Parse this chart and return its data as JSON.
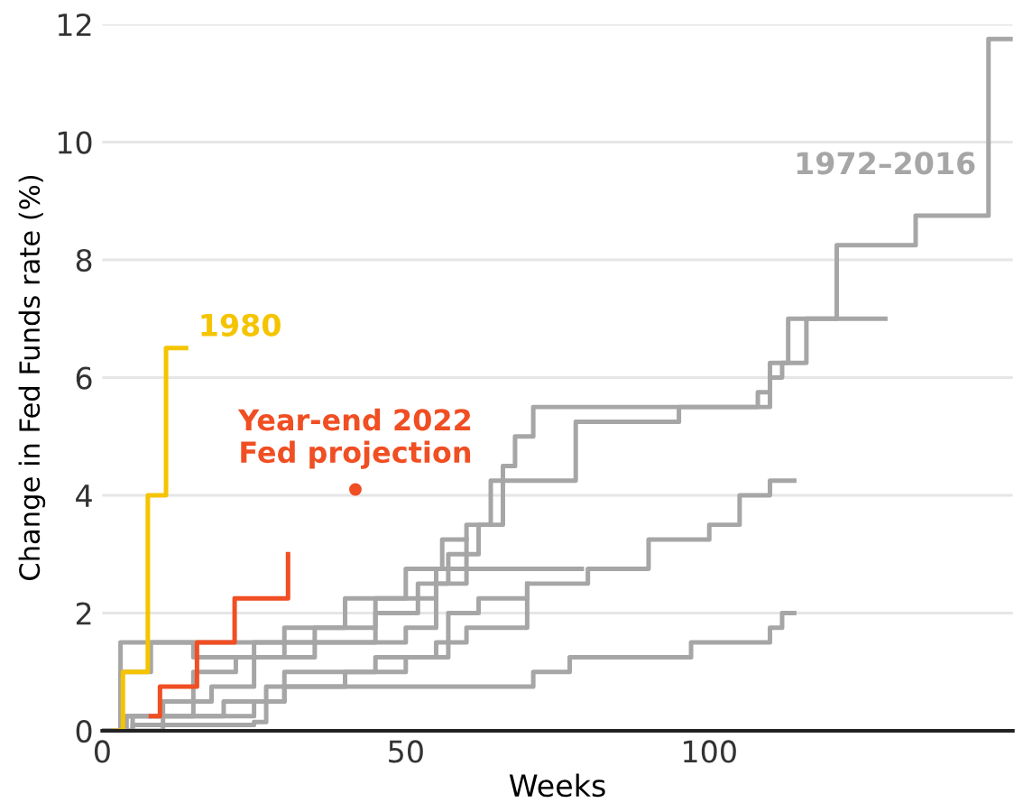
{
  "chart_data": {
    "type": "step",
    "xlabel": "Weeks",
    "ylabel": "Change in Fed Funds rate (%)",
    "xlim": [
      0,
      150
    ],
    "xticks": [
      0,
      50,
      100
    ],
    "ylim": [
      0,
      12
    ],
    "yticks": [
      0,
      2,
      4,
      6,
      8,
      10,
      12
    ],
    "grid": "y",
    "legend": false,
    "marker": "none",
    "line_style": "solid",
    "series": [
      {
        "name": "1972–2016",
        "color": "#a6a6a6",
        "x": [
          0,
          3,
          10,
          18,
          25,
          35,
          45,
          52,
          57,
          62,
          66,
          68,
          71,
          108,
          110,
          113,
          121,
          134,
          146,
          150
        ],
        "values": [
          0,
          0.25,
          0.5,
          0.75,
          1.25,
          1.5,
          2,
          2.5,
          3,
          3.5,
          4.5,
          5,
          5.5,
          5.75,
          6.25,
          7,
          8.25,
          8.75,
          11.75,
          11.75
        ]
      },
      {
        "color": "#a6a6a6",
        "x": [
          0,
          5,
          15,
          22,
          30,
          40,
          50,
          56,
          60,
          64,
          78,
          95,
          107,
          110,
          112,
          116,
          129
        ],
        "values": [
          0,
          0.25,
          1,
          1.25,
          1.75,
          2.25,
          2.75,
          3.25,
          3.5,
          4.25,
          5.25,
          5.5,
          5.5,
          6,
          6.25,
          7,
          7
        ]
      },
      {
        "color": "#a6a6a6",
        "x": [
          0,
          3,
          45,
          50,
          55,
          60,
          70,
          79
        ],
        "values": [
          0,
          1.5,
          1.5,
          1.75,
          2.5,
          2.75,
          2.75,
          2.75
        ]
      },
      {
        "color": "#a6a6a6",
        "x": [
          0,
          10,
          25,
          30,
          45,
          55,
          60,
          70,
          80,
          90,
          100,
          105,
          110,
          114
        ],
        "values": [
          0,
          0.25,
          0.5,
          1,
          1.25,
          1.5,
          1.75,
          2.5,
          2.75,
          3.25,
          3.5,
          4,
          4.25,
          4.25
        ]
      },
      {
        "color": "#a6a6a6",
        "x": [
          0,
          5,
          25,
          27,
          71,
          77,
          97,
          110,
          112,
          114
        ],
        "values": [
          0,
          0.1,
          0.15,
          0.75,
          1,
          1.25,
          1.5,
          1.75,
          2,
          2
        ]
      },
      {
        "color": "#a6a6a6",
        "x": [
          0,
          4,
          20,
          30,
          40,
          50,
          57,
          62,
          70
        ],
        "values": [
          0,
          0.25,
          0.5,
          0.75,
          1,
          1.25,
          2,
          2.25,
          2.5
        ]
      },
      {
        "color": "#a6a6a6",
        "x": [
          0,
          3,
          8,
          15,
          25,
          35,
          45,
          55,
          60
        ],
        "values": [
          0,
          1,
          1.5,
          1.25,
          1.5,
          1.75,
          2.25,
          2.75,
          3.25
        ]
      },
      {
        "name": "1980",
        "color": "#f5c400",
        "x": [
          2,
          3.4,
          7.5,
          10.5,
          13.8
        ],
        "values": [
          0,
          1,
          4,
          6.5,
          6.5
        ]
      },
      {
        "color": "#f04e23",
        "x": [
          8,
          9.5,
          15.6,
          21.8,
          30.6
        ],
        "values": [
          0.25,
          0.75,
          1.5,
          2.25,
          3
        ]
      },
      {
        "name": "Year-end 2022\nFed projection",
        "type": "scatter",
        "marker": "circle",
        "color": "#f04e23",
        "x": [
          41.7
        ],
        "values": [
          4.1
        ]
      }
    ]
  }
}
